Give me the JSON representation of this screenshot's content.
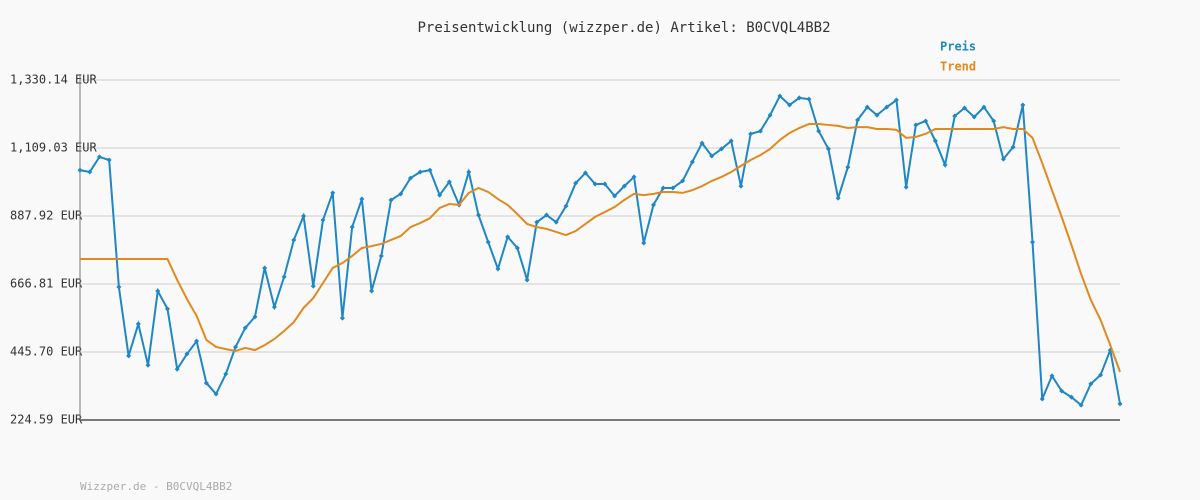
{
  "chart_data": {
    "type": "line",
    "title": "Preisentwicklung (wizzper.de) Artikel: B0CVQL4BB2",
    "footer": "Wizzper.de - B0CVQL4BB2",
    "ylim": [
      224.59,
      1330.14
    ],
    "yticks": [
      {
        "value": 224.59,
        "label": "224.59 EUR"
      },
      {
        "value": 445.7,
        "label": "445.70 EUR"
      },
      {
        "value": 666.81,
        "label": "666.81 EUR"
      },
      {
        "value": 887.92,
        "label": "887.92 EUR"
      },
      {
        "value": 1109.03,
        "label": "1,109.03 EUR"
      },
      {
        "value": 1330.14,
        "label": "1,330.14 EUR"
      }
    ],
    "grid": true,
    "legend": "top-right",
    "series": [
      {
        "name": "Preis",
        "color": "#1f87c4",
        "markers": true,
        "values": [
          1037,
          1031,
          1080,
          1070,
          657,
          433,
          537,
          403,
          644,
          586,
          390,
          439,
          481,
          345,
          309,
          374,
          462,
          524,
          560,
          719,
          592,
          690,
          810,
          888,
          660,
          875,
          963,
          556,
          852,
          943,
          644,
          758,
          940,
          960,
          1011,
          1031,
          1037,
          956,
          999,
          924,
          1031,
          891,
          803,
          716,
          820,
          784,
          680,
          868,
          891,
          868,
          920,
          995,
          1028,
          992,
          992,
          953,
          985,
          1015,
          800,
          924,
          979,
          979,
          1002,
          1064,
          1125,
          1083,
          1106,
          1132,
          985,
          1155,
          1164,
          1216,
          1278,
          1249,
          1272,
          1268,
          1164,
          1106,
          946,
          1047,
          1200,
          1242,
          1216,
          1242,
          1265,
          982,
          1184,
          1197,
          1132,
          1054,
          1213,
          1239,
          1210,
          1242,
          1197,
          1073,
          1112,
          1249,
          803,
          293,
          368,
          319,
          299,
          273,
          342,
          371,
          452,
          277
        ]
      },
      {
        "name": "Trend",
        "color": "#e08a1e",
        "markers": false,
        "values": [
          748,
          748,
          748,
          748,
          748,
          748,
          748,
          748,
          748,
          748,
          680,
          618,
          563,
          485,
          462,
          455,
          449,
          459,
          452,
          468,
          488,
          514,
          543,
          589,
          621,
          670,
          719,
          735,
          758,
          784,
          790,
          797,
          810,
          823,
          852,
          865,
          881,
          914,
          927,
          924,
          963,
          979,
          966,
          943,
          924,
          894,
          862,
          852,
          846,
          836,
          826,
          839,
          862,
          885,
          901,
          917,
          940,
          960,
          956,
          960,
          966,
          966,
          963,
          972,
          985,
          1002,
          1015,
          1031,
          1051,
          1070,
          1086,
          1106,
          1135,
          1158,
          1174,
          1187,
          1187,
          1184,
          1181,
          1174,
          1177,
          1177,
          1171,
          1171,
          1168,
          1142,
          1145,
          1155,
          1171,
          1171,
          1171,
          1171,
          1171,
          1171,
          1171,
          1177,
          1171,
          1171,
          1142,
          1060,
          972,
          885,
          794,
          699,
          615,
          550,
          468,
          381
        ]
      }
    ]
  }
}
